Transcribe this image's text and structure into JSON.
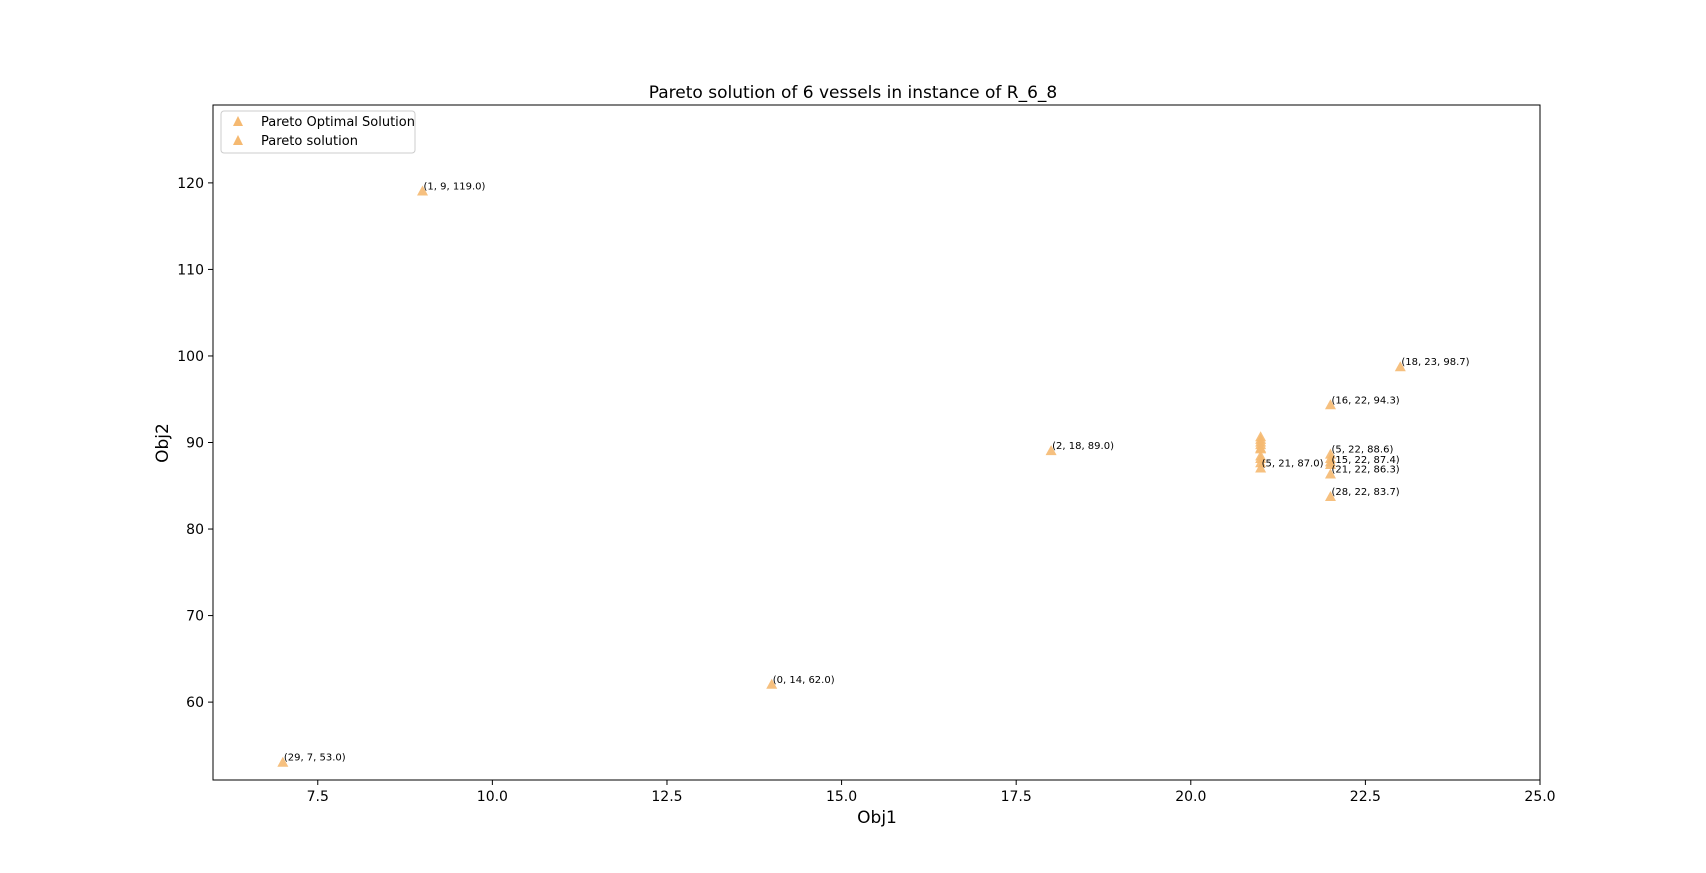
{
  "chart_data": {
    "type": "scatter",
    "title": "Pareto solution of 6 vessels in instance of R_6_8",
    "xlabel": "Obj1",
    "ylabel": "Obj2",
    "xlim": [
      6.0,
      25.0
    ],
    "ylim": [
      51.0,
      129.0
    ],
    "xticks": [
      7.5,
      10.0,
      12.5,
      15.0,
      17.5,
      20.0,
      22.5,
      25.0
    ],
    "xtick_labels": [
      "7.5",
      "10.0",
      "12.5",
      "15.0",
      "17.5",
      "20.0",
      "22.5",
      "25.0"
    ],
    "yticks": [
      60,
      70,
      80,
      90,
      100,
      110,
      120
    ],
    "ytick_labels": [
      "60",
      "70",
      "80",
      "90",
      "100",
      "110",
      "120"
    ],
    "grid": false,
    "legend_position": "top-left",
    "marker_color": "#f5b971",
    "series": [
      {
        "name": "Pareto Optimal Solution",
        "marker": "triangle",
        "points": [
          {
            "x": 7,
            "y": 53.0,
            "label": "(29, 7, 53.0)"
          },
          {
            "x": 9,
            "y": 119.0,
            "label": "(1, 9, 119.0)"
          },
          {
            "x": 14,
            "y": 62.0,
            "label": "(0, 14, 62.0)"
          },
          {
            "x": 18,
            "y": 89.0,
            "label": "(2, 18, 89.0)"
          },
          {
            "x": 21,
            "y": 87.0,
            "label": "(5, 21, 87.0)"
          },
          {
            "x": 22,
            "y": 83.7,
            "label": "(28, 22, 83.7)"
          }
        ]
      },
      {
        "name": "Pareto solution",
        "marker": "triangle",
        "points": [
          {
            "x": 21,
            "y": 90.6,
            "label": ""
          },
          {
            "x": 21,
            "y": 90.3,
            "label": ""
          },
          {
            "x": 21,
            "y": 90.0,
            "label": ""
          },
          {
            "x": 21,
            "y": 89.7,
            "label": ""
          },
          {
            "x": 21,
            "y": 89.3,
            "label": ""
          },
          {
            "x": 21,
            "y": 89.2,
            "label": ""
          },
          {
            "x": 21,
            "y": 88.4,
            "label": ""
          },
          {
            "x": 21,
            "y": 88.1,
            "label": ""
          },
          {
            "x": 21,
            "y": 87.6,
            "label": ""
          },
          {
            "x": 22,
            "y": 88.6,
            "label": "(5, 22, 88.6)"
          },
          {
            "x": 22,
            "y": 88.1,
            "label": ""
          },
          {
            "x": 22,
            "y": 87.7,
            "label": ""
          },
          {
            "x": 22,
            "y": 87.4,
            "label": "(15, 22, 87.4)"
          },
          {
            "x": 22,
            "y": 86.3,
            "label": "(21, 22, 86.3)"
          },
          {
            "x": 22,
            "y": 94.3,
            "label": "(16, 22, 94.3)"
          },
          {
            "x": 23,
            "y": 98.7,
            "label": "(18, 23, 98.7)"
          }
        ]
      }
    ]
  }
}
